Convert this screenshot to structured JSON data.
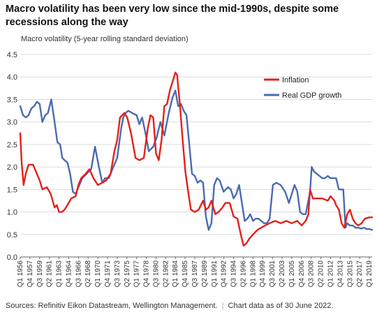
{
  "title": "Macro volatility has been very low since the mid-1990s, despite some recessions along the way",
  "footer": {
    "source": "Sources: Refinitiv Eikon Datastream, Wellington Management.",
    "note": "Chart data as of 30 June 2022."
  },
  "colors": {
    "inflation": "#e3201b",
    "gdp": "#4a6bb0",
    "grid": "#dcdcdc",
    "axis": "#666666"
  },
  "chart_data": {
    "type": "line",
    "ylabel": "Macro volatility (5-year rolling standard deviation)",
    "xlabel": "",
    "ylim": [
      0,
      4.5
    ],
    "yticks": [
      "0.0",
      "0.5",
      "1.0",
      "1.5",
      "2.0",
      "2.5",
      "3.0",
      "3.5",
      "4.0",
      "4.5"
    ],
    "grid": "horizontal",
    "legend_position": "top-right",
    "x_ticks": [
      "Q1 1956",
      "Q4 1957",
      "Q3 1959",
      "Q2 1961",
      "Q1 1963",
      "Q4 1964",
      "Q3 1966",
      "Q2 1968",
      "Q1 1970",
      "Q4 1971",
      "Q3 1973",
      "Q2 1975",
      "Q1 1977",
      "Q4 1978",
      "Q3 1980",
      "Q2 1982",
      "Q1 1984",
      "Q4 1985",
      "Q3 1987",
      "Q2 1989",
      "Q1 1991",
      "Q4 1992",
      "Q3 1994",
      "Q2 1996",
      "Q1 1998",
      "Q4 1999",
      "Q3 2001",
      "Q2 2003",
      "Q1 2005",
      "Q4 2006",
      "Q3 2008",
      "Q2 2010",
      "Q1 2012",
      "Q4 2013",
      "Q3 2015",
      "Q2 2017",
      "Q1 2019"
    ],
    "series": [
      {
        "name": "Inflation",
        "x": [
          1956.0,
          1956.25,
          1956.6,
          1957.0,
          1957.5,
          1958.3,
          1959.0,
          1959.5,
          1960.0,
          1960.8,
          1961.5,
          1962.2,
          1962.6,
          1963.0,
          1963.5,
          1964.0,
          1964.5,
          1965.2,
          1966.0,
          1966.5,
          1967.0,
          1967.8,
          1968.5,
          1969.2,
          1970.0,
          1970.8,
          1971.5,
          1972.3,
          1973.0,
          1973.5,
          1974.0,
          1974.8,
          1975.3,
          1976.0,
          1976.8,
          1977.5,
          1978.3,
          1979.0,
          1979.5,
          1980.0,
          1980.5,
          1981.0,
          1981.5,
          1982.0,
          1982.5,
          1983.0,
          1983.5,
          1984.0,
          1984.3,
          1984.8,
          1985.3,
          1985.8,
          1986.3,
          1986.8,
          1987.5,
          1988.2,
          1989.0,
          1989.5,
          1990.0,
          1990.5,
          1991.2,
          1991.8,
          1992.5,
          1993.0,
          1993.8,
          1994.5,
          1995.2,
          1995.8,
          1996.3,
          1996.8,
          1997.3,
          1998.0,
          1998.8,
          1999.5,
          2000.2,
          2001.0,
          2002.0,
          2003.0,
          2004.0,
          2005.0,
          2006.0,
          2006.8,
          2007.5,
          2008.0,
          2008.3,
          2008.8,
          2009.5,
          2010.5,
          2011.5,
          2012.0,
          2012.7,
          2013.0,
          2013.5,
          2014.0,
          2014.5,
          2015.0,
          2015.5,
          2016.0,
          2016.5,
          2017.0,
          2017.6,
          2018.2,
          2019.0,
          2019.5
        ],
        "values": [
          2.75,
          2.1,
          1.6,
          1.85,
          2.05,
          2.05,
          1.85,
          1.7,
          1.5,
          1.55,
          1.4,
          1.1,
          1.15,
          1.0,
          1.0,
          1.05,
          1.15,
          1.3,
          1.35,
          1.6,
          1.75,
          1.85,
          1.95,
          1.75,
          1.6,
          1.65,
          1.7,
          1.85,
          2.35,
          2.6,
          3.1,
          3.2,
          3.1,
          2.75,
          2.2,
          2.15,
          2.2,
          2.85,
          3.15,
          3.1,
          2.3,
          2.15,
          2.6,
          3.35,
          3.4,
          3.7,
          3.9,
          4.1,
          4.05,
          3.4,
          2.6,
          1.9,
          1.45,
          1.05,
          1.0,
          1.05,
          1.25,
          1.05,
          1.1,
          1.25,
          0.95,
          1.0,
          1.1,
          1.2,
          1.2,
          0.9,
          0.85,
          0.5,
          0.25,
          0.3,
          0.4,
          0.5,
          0.6,
          0.65,
          0.7,
          0.75,
          0.8,
          0.75,
          0.8,
          0.75,
          0.8,
          0.7,
          0.8,
          0.95,
          1.5,
          1.3,
          1.3,
          1.3,
          1.25,
          1.35,
          1.25,
          1.15,
          1.05,
          0.75,
          0.65,
          0.95,
          1.05,
          0.85,
          0.75,
          0.7,
          0.75,
          0.85,
          0.88,
          0.88
        ]
      },
      {
        "name": "Real GDP growth",
        "x": [
          1956.0,
          1956.5,
          1957.0,
          1957.5,
          1958.0,
          1958.5,
          1959.0,
          1959.5,
          1960.0,
          1960.5,
          1961.0,
          1961.6,
          1962.2,
          1962.7,
          1963.2,
          1963.6,
          1964.0,
          1964.5,
          1965.0,
          1965.5,
          1966.0,
          1966.5,
          1967.2,
          1968.0,
          1968.8,
          1969.5,
          1970.2,
          1970.8,
          1971.3,
          1972.0,
          1972.8,
          1973.5,
          1974.2,
          1974.6,
          1975.0,
          1975.5,
          1976.2,
          1977.0,
          1977.5,
          1978.0,
          1978.6,
          1979.2,
          1980.0,
          1980.6,
          1981.3,
          1982.0,
          1982.8,
          1983.5,
          1984.0,
          1984.5,
          1985.0,
          1985.5,
          1986.0,
          1986.5,
          1987.0,
          1987.5,
          1988.0,
          1988.5,
          1989.0,
          1989.5,
          1990.0,
          1990.5,
          1991.0,
          1991.5,
          1992.0,
          1992.7,
          1993.5,
          1994.0,
          1994.5,
          1995.0,
          1995.5,
          1996.0,
          1996.5,
          1997.0,
          1997.5,
          1998.0,
          1998.5,
          1999.0,
          1999.5,
          2000.0,
          2000.5,
          2001.0,
          2001.6,
          2002.2,
          2003.0,
          2003.8,
          2004.5,
          2005.0,
          2005.5,
          2006.0,
          2006.5,
          2007.0,
          2007.5,
          2008.0,
          2008.3,
          2008.6,
          2009.0,
          2009.5,
          2010.0,
          2010.5,
          2011.0,
          2011.5,
          2012.0,
          2012.5,
          2013.0,
          2013.5,
          2014.0,
          2014.3,
          2014.7,
          2015.0,
          2015.5,
          2016.0,
          2016.5,
          2017.0,
          2017.5,
          2018.0,
          2018.5,
          2019.0,
          2019.5
        ],
        "values": [
          3.35,
          3.15,
          3.1,
          3.15,
          3.3,
          3.35,
          3.45,
          3.4,
          3.0,
          3.15,
          3.2,
          3.5,
          3.0,
          2.55,
          2.5,
          2.2,
          2.15,
          2.1,
          1.85,
          1.45,
          1.4,
          1.55,
          1.75,
          1.85,
          1.95,
          2.45,
          2.0,
          1.65,
          1.75,
          1.75,
          2.0,
          2.2,
          2.85,
          3.1,
          3.2,
          3.25,
          3.2,
          3.15,
          2.95,
          3.1,
          2.75,
          2.35,
          2.45,
          2.65,
          3.0,
          2.7,
          3.2,
          3.55,
          3.7,
          3.35,
          3.4,
          3.25,
          3.15,
          2.5,
          1.85,
          1.8,
          1.65,
          1.7,
          1.65,
          0.9,
          0.6,
          0.75,
          1.6,
          1.75,
          1.7,
          1.45,
          1.55,
          1.5,
          1.3,
          1.4,
          1.6,
          1.2,
          0.8,
          0.85,
          0.95,
          0.8,
          0.85,
          0.85,
          0.8,
          0.75,
          0.75,
          0.85,
          1.6,
          1.65,
          1.6,
          1.45,
          1.2,
          1.4,
          1.6,
          1.45,
          1.0,
          0.95,
          0.95,
          1.25,
          1.45,
          2.0,
          1.9,
          1.85,
          1.8,
          1.75,
          1.75,
          1.8,
          1.75,
          1.75,
          1.75,
          1.5,
          1.5,
          1.5,
          0.65,
          0.75,
          0.7,
          0.7,
          0.65,
          0.65,
          0.63,
          0.65,
          0.62,
          0.62,
          0.6
        ]
      }
    ]
  }
}
